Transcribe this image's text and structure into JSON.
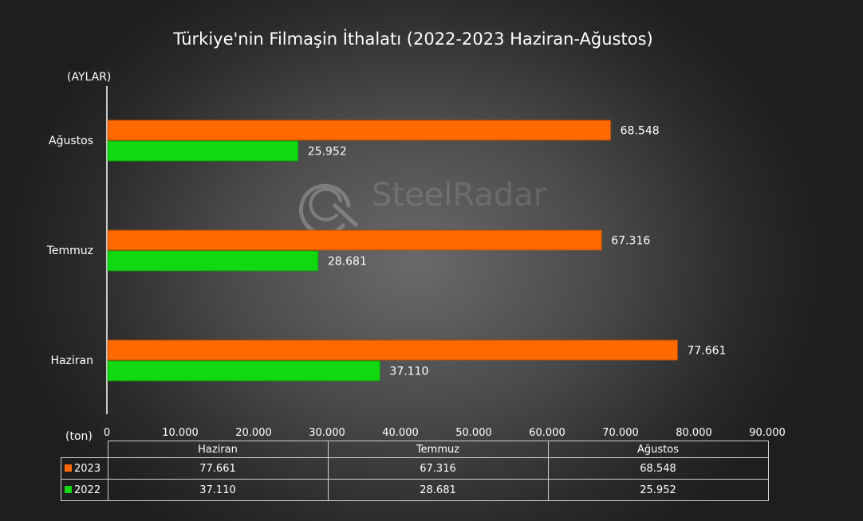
{
  "chart_data": {
    "type": "bar",
    "orientation": "horizontal",
    "title": "Türkiye'nin  Filmaşin İthalatı (2022-2023 Haziran-Ağustos)",
    "ylabel": "(AYLAR)",
    "xlabel": "(ton)",
    "categories": [
      "Haziran",
      "Temmuz",
      "Ağustos"
    ],
    "xlim": [
      0,
      90000
    ],
    "x_ticks": [
      "0",
      "10.000",
      "20.000",
      "30.000",
      "40.000",
      "50.000",
      "60.000",
      "70.000",
      "80.000",
      "90.000"
    ],
    "series": [
      {
        "name": "2023",
        "color": "#ff6a00",
        "values": [
          77661,
          67316,
          68548
        ],
        "labels": [
          "77.661",
          "67.316",
          "68.548"
        ]
      },
      {
        "name": "2022",
        "color": "#12d812",
        "values": [
          37110,
          28681,
          25952
        ],
        "labels": [
          "37.110",
          "28.681",
          "25.952"
        ]
      }
    ],
    "grid": false,
    "legend": "data-table"
  },
  "watermark": {
    "text_a": "Steel",
    "text_b": "Radar"
  }
}
